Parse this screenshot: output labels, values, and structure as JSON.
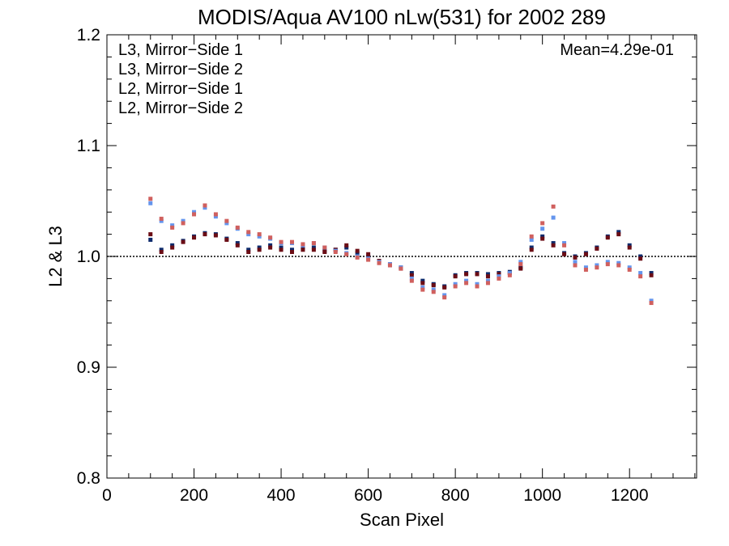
{
  "chart_data": {
    "type": "scatter",
    "title": "MODIS/Aqua AV100 nLw(531) for 2002 289",
    "xlabel": "Scan Pixel",
    "ylabel": "L2 & L3",
    "xlim": [
      0,
      1354
    ],
    "ylim": [
      0.8,
      1.2
    ],
    "x_ticks": [
      0,
      200,
      400,
      600,
      800,
      1000,
      1200
    ],
    "y_ticks": [
      0.8,
      0.9,
      1.0,
      1.1,
      1.2
    ],
    "x_tick_labels": [
      "0",
      "200",
      "400",
      "600",
      "800",
      "1000",
      "1200"
    ],
    "y_tick_labels": [
      "0.8",
      "0.9",
      "1.0",
      "1.1",
      "1.2"
    ],
    "reference_line": 1.0,
    "annotation": "Mean=4.29e-01",
    "legend_position": "top-left",
    "grid": false,
    "series": [
      {
        "name": "L3, Mirror−Side 1",
        "color": "#0d2a6b",
        "x": [
          100,
          125,
          150,
          175,
          200,
          225,
          250,
          275,
          300,
          325,
          350,
          375,
          400,
          425,
          450,
          475,
          500,
          525,
          550,
          575,
          600,
          625,
          650,
          675,
          700,
          725,
          750,
          775,
          800,
          825,
          850,
          875,
          900,
          925,
          950,
          975,
          1000,
          1025,
          1050,
          1075,
          1100,
          1125,
          1150,
          1175,
          1200,
          1225,
          1250
        ],
        "y": [
          1.015,
          1.006,
          1.01,
          1.014,
          1.018,
          1.021,
          1.02,
          1.016,
          1.012,
          1.006,
          1.008,
          1.01,
          1.008,
          1.006,
          1.008,
          1.008,
          1.005,
          1.006,
          1.008,
          1.003,
          1.0,
          0.995,
          0.992,
          0.99,
          0.985,
          0.978,
          0.975,
          0.973,
          0.983,
          0.985,
          0.985,
          0.984,
          0.985,
          0.986,
          0.99,
          1.008,
          1.018,
          1.012,
          1.003,
          1.0,
          1.003,
          1.008,
          1.018,
          1.022,
          1.01,
          1.0,
          0.985
        ]
      },
      {
        "name": "L3, Mirror−Side 2",
        "color": "#6b0d15",
        "x": [
          100,
          125,
          150,
          175,
          200,
          225,
          250,
          275,
          300,
          325,
          350,
          375,
          400,
          425,
          450,
          475,
          500,
          525,
          550,
          575,
          600,
          625,
          650,
          675,
          700,
          725,
          750,
          775,
          800,
          825,
          850,
          875,
          900,
          925,
          950,
          975,
          1000,
          1025,
          1050,
          1075,
          1100,
          1125,
          1150,
          1175,
          1200,
          1225,
          1250
        ],
        "y": [
          1.02,
          1.004,
          1.008,
          1.013,
          1.017,
          1.02,
          1.019,
          1.015,
          1.01,
          1.004,
          1.006,
          1.008,
          1.006,
          1.004,
          1.006,
          1.006,
          1.004,
          1.006,
          1.01,
          1.005,
          1.002,
          0.996,
          0.993,
          0.989,
          0.983,
          0.976,
          0.974,
          0.972,
          0.982,
          0.984,
          0.984,
          0.982,
          0.984,
          0.985,
          0.989,
          1.006,
          1.016,
          1.01,
          1.002,
          0.999,
          1.002,
          1.007,
          1.017,
          1.02,
          1.008,
          0.998,
          0.983
        ]
      },
      {
        "name": "L2, Mirror−Side 1",
        "color": "#6495ed",
        "x": [
          100,
          125,
          150,
          175,
          200,
          225,
          250,
          275,
          300,
          325,
          350,
          375,
          400,
          425,
          450,
          475,
          500,
          525,
          550,
          575,
          600,
          625,
          650,
          675,
          700,
          725,
          750,
          775,
          800,
          825,
          850,
          875,
          900,
          925,
          950,
          975,
          1000,
          1025,
          1050,
          1075,
          1100,
          1125,
          1150,
          1175,
          1200,
          1225,
          1250
        ],
        "y": [
          1.048,
          1.032,
          1.028,
          1.032,
          1.04,
          1.044,
          1.036,
          1.03,
          1.025,
          1.02,
          1.018,
          1.016,
          1.012,
          1.012,
          1.01,
          1.012,
          1.008,
          1.005,
          1.003,
          1.0,
          0.998,
          0.995,
          0.993,
          0.99,
          0.98,
          0.972,
          0.97,
          0.965,
          0.975,
          0.978,
          0.975,
          0.978,
          0.982,
          0.985,
          0.995,
          1.015,
          1.025,
          1.035,
          1.012,
          0.995,
          0.99,
          0.992,
          0.995,
          0.994,
          0.99,
          0.985,
          0.96
        ]
      },
      {
        "name": "L2, Mirror−Side 2",
        "color": "#d0605e",
        "x": [
          100,
          125,
          150,
          175,
          200,
          225,
          250,
          275,
          300,
          325,
          350,
          375,
          400,
          425,
          450,
          475,
          500,
          525,
          550,
          575,
          600,
          625,
          650,
          675,
          700,
          725,
          750,
          775,
          800,
          825,
          850,
          875,
          900,
          925,
          950,
          975,
          1000,
          1025,
          1050,
          1075,
          1100,
          1125,
          1150,
          1175,
          1200,
          1225,
          1250
        ],
        "y": [
          1.052,
          1.034,
          1.026,
          1.03,
          1.038,
          1.046,
          1.038,
          1.032,
          1.026,
          1.022,
          1.02,
          1.017,
          1.013,
          1.013,
          1.011,
          1.012,
          1.008,
          1.004,
          1.002,
          0.999,
          0.997,
          0.994,
          0.992,
          0.989,
          0.978,
          0.97,
          0.968,
          0.963,
          0.973,
          0.976,
          0.973,
          0.976,
          0.98,
          0.983,
          0.993,
          1.018,
          1.03,
          1.045,
          1.01,
          0.992,
          0.988,
          0.99,
          0.993,
          0.992,
          0.988,
          0.982,
          0.958
        ]
      }
    ]
  }
}
